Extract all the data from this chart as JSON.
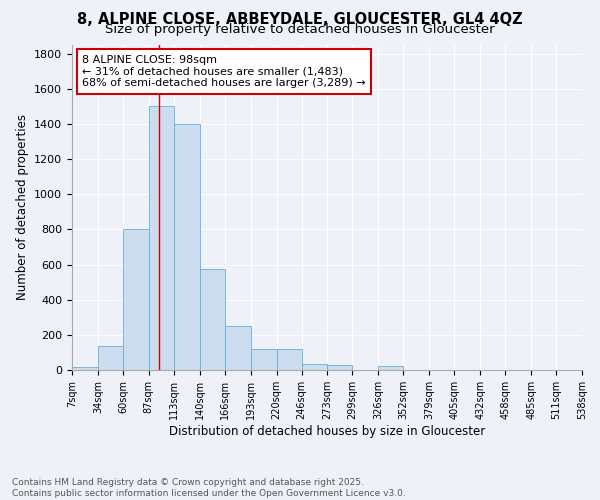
{
  "title_line1": "8, ALPINE CLOSE, ABBEYDALE, GLOUCESTER, GL4 4QZ",
  "title_line2": "Size of property relative to detached houses in Gloucester",
  "xlabel": "Distribution of detached houses by size in Gloucester",
  "ylabel": "Number of detached properties",
  "bin_edges": [
    7,
    34,
    60,
    87,
    113,
    140,
    166,
    193,
    220,
    246,
    273,
    299,
    326,
    352,
    379,
    405,
    432,
    458,
    485,
    511,
    538
  ],
  "bar_heights": [
    15,
    135,
    800,
    1500,
    1400,
    575,
    250,
    120,
    120,
    35,
    30,
    0,
    20,
    0,
    0,
    0,
    0,
    0,
    0,
    0
  ],
  "bar_color": "#ccddf0",
  "bar_edge_color": "#6baed6",
  "vline_x": 98,
  "vline_color": "#cc0000",
  "annotation_text": "8 ALPINE CLOSE: 98sqm\n← 31% of detached houses are smaller (1,483)\n68% of semi-detached houses are larger (3,289) →",
  "annotation_box_color": "#ffffff",
  "annotation_box_edge": "#cc0000",
  "ylim": [
    0,
    1850
  ],
  "yticks": [
    0,
    200,
    400,
    600,
    800,
    1000,
    1200,
    1400,
    1600,
    1800
  ],
  "background_color": "#eef2f8",
  "plot_bg_color": "#eef2f8",
  "grid_color": "#ffffff",
  "footer_text": "Contains HM Land Registry data © Crown copyright and database right 2025.\nContains public sector information licensed under the Open Government Licence v3.0.",
  "title_fontsize": 10.5,
  "subtitle_fontsize": 9.5,
  "tick_label_fontsize": 7,
  "ylabel_fontsize": 8.5,
  "xlabel_fontsize": 8.5,
  "footer_fontsize": 6.5
}
